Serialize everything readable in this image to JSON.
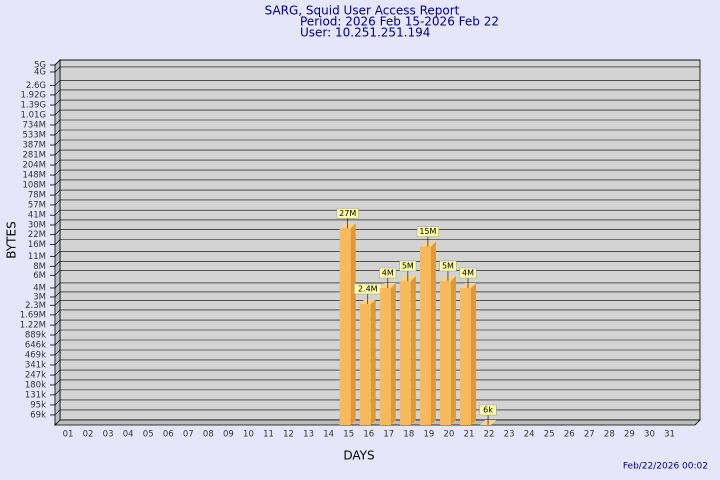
{
  "chart_data": {
    "type": "bar",
    "title": "SARG, Squid User Access Report",
    "subtitle": "Period: 2026 Feb 15-2026 Feb 22",
    "user": "User: 10.251.251.194",
    "y_label": "BYTES",
    "x_label": "DAYS",
    "footer": "Feb/22/2026 00:02",
    "log_scale": true,
    "grid": true,
    "color": "#f7b95a",
    "categories": [
      "01",
      "02",
      "03",
      "04",
      "05",
      "06",
      "07",
      "08",
      "09",
      "10",
      "11",
      "12",
      "13",
      "14",
      "15",
      "16",
      "17",
      "18",
      "19",
      "20",
      "21",
      "22",
      "23",
      "24",
      "25",
      "26",
      "27",
      "28",
      "29",
      "30",
      "31"
    ],
    "values": [
      null,
      null,
      null,
      null,
      null,
      null,
      null,
      null,
      null,
      null,
      null,
      null,
      null,
      null,
      27000000,
      2400000,
      4000000,
      5000000,
      15000000,
      5000000,
      4000000,
      6000,
      null,
      null,
      null,
      null,
      null,
      null,
      null,
      null,
      null
    ],
    "value_labels": [
      null,
      null,
      null,
      null,
      null,
      null,
      null,
      null,
      null,
      null,
      null,
      null,
      null,
      null,
      "27M",
      "2.4M",
      "4M",
      "5M",
      "15M",
      "5M",
      "4M",
      "6k",
      null,
      null,
      null,
      null,
      null,
      null,
      null,
      null,
      null
    ],
    "ylim": [
      50000,
      5000000000
    ],
    "yticks": [
      {
        "value": 69000,
        "label": "69k"
      },
      {
        "value": 95000,
        "label": "95k"
      },
      {
        "value": 131000,
        "label": "131k"
      },
      {
        "value": 180000,
        "label": "180k"
      },
      {
        "value": 247000,
        "label": "247k"
      },
      {
        "value": 341000,
        "label": "341k"
      },
      {
        "value": 469000,
        "label": "469k"
      },
      {
        "value": 646000,
        "label": "646k"
      },
      {
        "value": 889000,
        "label": "889k"
      },
      {
        "value": 1220000,
        "label": "1.22M"
      },
      {
        "value": 1690000,
        "label": "1.69M"
      },
      {
        "value": 2300000,
        "label": "2.3M"
      },
      {
        "value": 3000000,
        "label": "3M"
      },
      {
        "value": 4000000,
        "label": "4M"
      },
      {
        "value": 6000000,
        "label": "6M"
      },
      {
        "value": 8000000,
        "label": "8M"
      },
      {
        "value": 11000000,
        "label": "11M"
      },
      {
        "value": 16000000,
        "label": "16M"
      },
      {
        "value": 22000000,
        "label": "22M"
      },
      {
        "value": 30000000,
        "label": "30M"
      },
      {
        "value": 41000000,
        "label": "41M"
      },
      {
        "value": 57000000,
        "label": "57M"
      },
      {
        "value": 78000000,
        "label": "78M"
      },
      {
        "value": 108000000,
        "label": "108M"
      },
      {
        "value": 148000000,
        "label": "148M"
      },
      {
        "value": 204000000,
        "label": "204M"
      },
      {
        "value": 281000000,
        "label": "281M"
      },
      {
        "value": 387000000,
        "label": "387M"
      },
      {
        "value": 533000000,
        "label": "533M"
      },
      {
        "value": 734000000,
        "label": "734M"
      },
      {
        "value": 1010000000,
        "label": "1.01G"
      },
      {
        "value": 1390000000,
        "label": "1.39G"
      },
      {
        "value": 1920000000,
        "label": "1.92G"
      },
      {
        "value": 2600000000,
        "label": "2.6G"
      },
      {
        "value": 4000000000,
        "label": "4G"
      },
      {
        "value": 5000000000,
        "label": "5G"
      }
    ]
  }
}
